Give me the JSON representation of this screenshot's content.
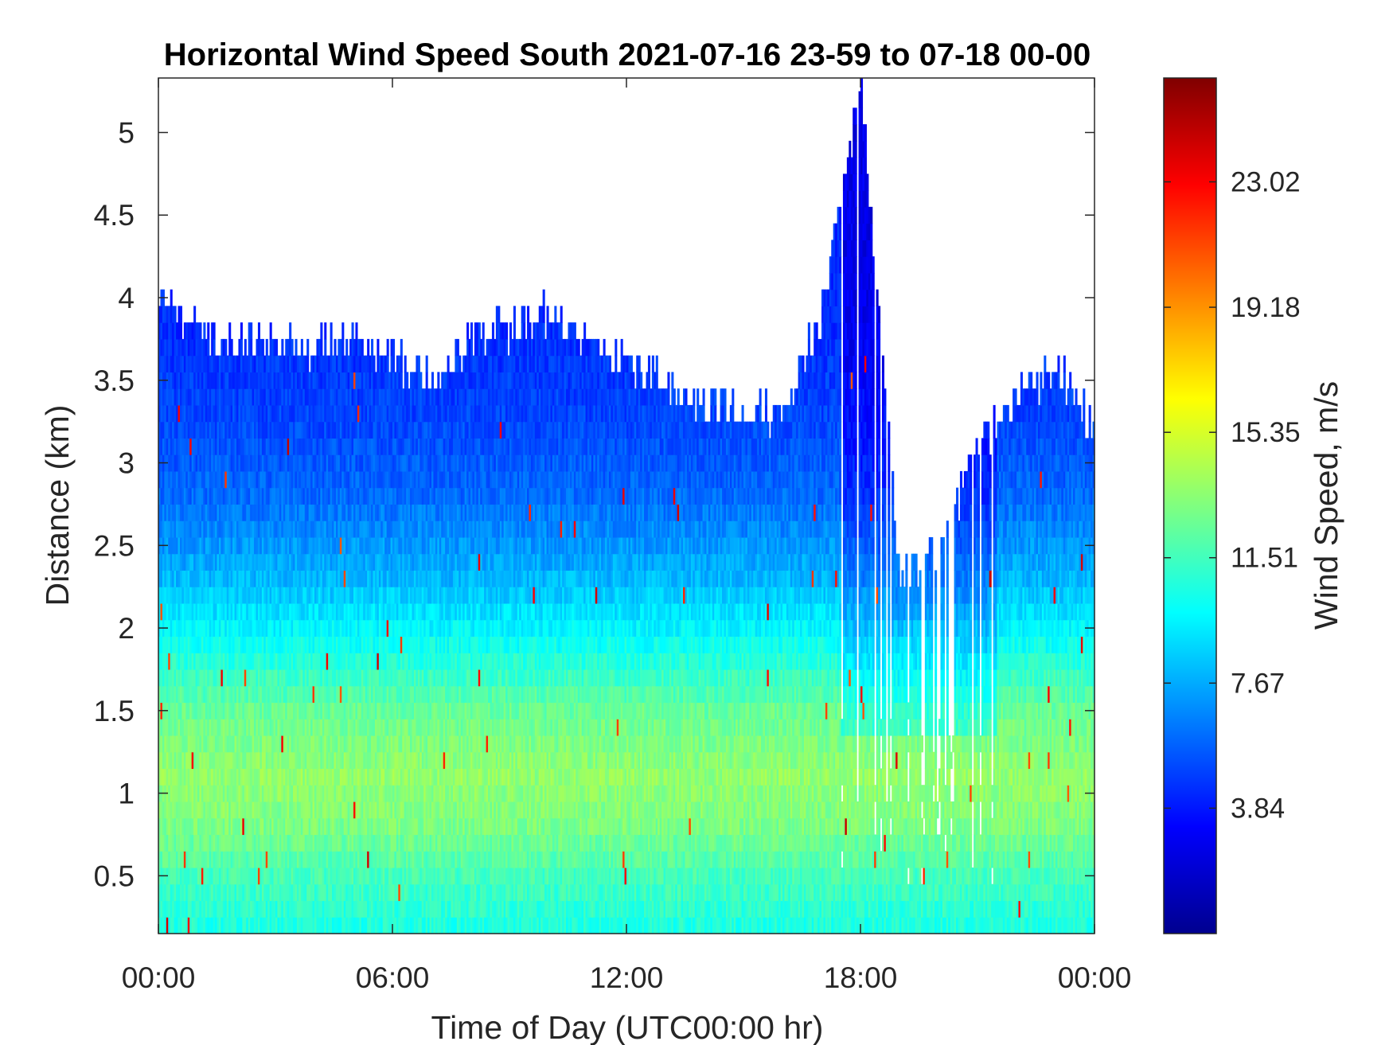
{
  "chart_data": {
    "type": "heatmap",
    "title": "Horizontal Wind Speed South 2021-07-16 23-59 to 07-18 00-00",
    "xlabel": "Time of Day (UTC00:00 hr)",
    "ylabel": "Distance (km)",
    "x_ticks": [
      "00:00",
      "06:00",
      "12:00",
      "18:00",
      "00:00"
    ],
    "x_tick_hours": [
      0,
      6,
      12,
      18,
      24
    ],
    "xlim_hours": [
      0,
      24
    ],
    "y_ticks": [
      "0.5",
      "1",
      "1.5",
      "2",
      "2.5",
      "3",
      "3.5",
      "4",
      "4.5",
      "5"
    ],
    "y_tick_values": [
      0.5,
      1,
      1.5,
      2,
      2.5,
      3,
      3.5,
      4,
      4.5,
      5
    ],
    "ylim": [
      0.15,
      5.33
    ],
    "colorbar": {
      "label": "Wind Speed, m/s",
      "colormap": "jet",
      "ticks": [
        "3.84",
        "7.67",
        "11.51",
        "15.35",
        "19.18",
        "23.02"
      ],
      "tick_values": [
        3.84,
        7.67,
        11.51,
        15.35,
        19.18,
        23.02
      ],
      "range": [
        0,
        26.2
      ]
    },
    "grid": false,
    "legend": "none",
    "data_top_km": [
      [
        0,
        4.1
      ],
      [
        1,
        3.8
      ],
      [
        2,
        3.7
      ],
      [
        3,
        3.75
      ],
      [
        4,
        3.7
      ],
      [
        5,
        3.75
      ],
      [
        6,
        3.65
      ],
      [
        7,
        3.5
      ],
      [
        8,
        3.75
      ],
      [
        9,
        3.8
      ],
      [
        10,
        3.9
      ],
      [
        11,
        3.75
      ],
      [
        12,
        3.6
      ],
      [
        13,
        3.5
      ],
      [
        14,
        3.35
      ],
      [
        15,
        3.35
      ],
      [
        16,
        3.3
      ],
      [
        17,
        3.9
      ],
      [
        18,
        5.3
      ],
      [
        19,
        2.3
      ],
      [
        20,
        2.5
      ],
      [
        21,
        3.1
      ],
      [
        22,
        3.4
      ],
      [
        23,
        3.6
      ],
      [
        24,
        3.2
      ]
    ],
    "profile_speed_ms": [
      [
        0.15,
        10.5
      ],
      [
        0.5,
        11.6
      ],
      [
        0.8,
        13.0
      ],
      [
        1.1,
        13.6
      ],
      [
        1.5,
        12.5
      ],
      [
        1.9,
        10.2
      ],
      [
        2.3,
        8.0
      ],
      [
        2.8,
        6.0
      ],
      [
        3.3,
        5.0
      ],
      [
        3.8,
        4.4
      ],
      [
        4.5,
        4.2
      ],
      [
        5.3,
        4.2
      ]
    ],
    "max_speed_ms": 24.5
  }
}
